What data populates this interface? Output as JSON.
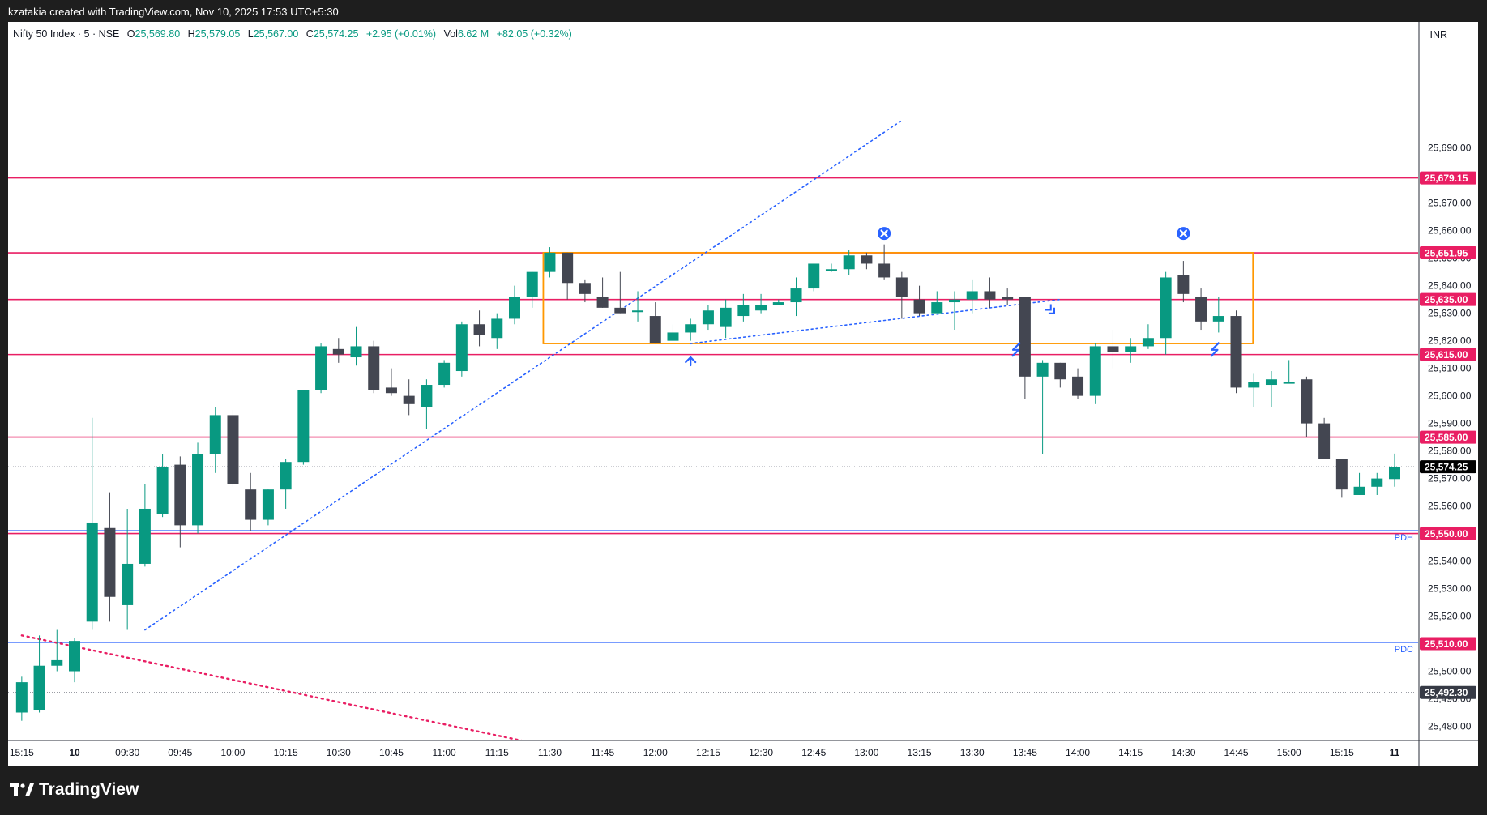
{
  "header": {
    "caption": "kzatakia created with TradingView.com, Nov 10, 2025 17:53 UTC+5:30"
  },
  "legend": {
    "symbol": "Nifty 50 Index · 5 · NSE",
    "o_label": "O",
    "o": "25,569.80",
    "h_label": "H",
    "h": "25,579.05",
    "l_label": "L",
    "l": "25,567.00",
    "c_label": "C",
    "c": "25,574.25",
    "change": "+2.95 (+0.01%)",
    "vol_label": "Vol",
    "vol": "6.62 M",
    "vol_change": "+82.05 (+0.32%)"
  },
  "currency": "INR",
  "footer": {
    "brand": "TradingView"
  },
  "colors": {
    "up": "#089981",
    "down": "#434651",
    "level": "#e91e63",
    "prev": "#2962ff",
    "box": "#ff9800",
    "trend": "#2962ff",
    "trend_down": "#e91e63"
  },
  "chart_data": {
    "type": "candlestick",
    "interval": "5",
    "ylim": [
      25475,
      25694
    ],
    "y_ticks": [
      25480,
      25490,
      25500,
      25510,
      25520,
      25530,
      25540,
      25550,
      25560,
      25570,
      25580,
      25590,
      25600,
      25610,
      25620,
      25630,
      25640,
      25650,
      25660,
      25670,
      25680,
      25690
    ],
    "x_tick_labels": [
      "15:15",
      "10",
      "09:30",
      "09:45",
      "10:00",
      "10:15",
      "10:30",
      "10:45",
      "11:00",
      "11:15",
      "11:30",
      "11:45",
      "12:00",
      "12:15",
      "12:30",
      "12:45",
      "13:00",
      "13:15",
      "13:30",
      "13:45",
      "14:00",
      "14:15",
      "14:30",
      "14:45",
      "15:00",
      "15:15",
      "11"
    ],
    "x_tick_bars": [
      -3,
      0,
      3,
      6,
      9,
      12,
      15,
      18,
      21,
      24,
      27,
      30,
      33,
      36,
      39,
      42,
      45,
      48,
      51,
      54,
      57,
      60,
      63,
      66,
      69,
      72,
      75
    ],
    "candles": [
      {
        "bar": -3,
        "o": 25485,
        "h": 25498,
        "l": 25482,
        "c": 25496
      },
      {
        "bar": -2,
        "o": 25486,
        "h": 25513,
        "l": 25485,
        "c": 25502
      },
      {
        "bar": -1,
        "o": 25502,
        "h": 25515,
        "l": 25500,
        "c": 25504
      },
      {
        "bar": 0,
        "o": 25500,
        "h": 25512,
        "l": 25496,
        "c": 25511
      },
      {
        "bar": 1,
        "o": 25518,
        "h": 25592,
        "l": 25515,
        "c": 25554
      },
      {
        "bar": 2,
        "o": 25552,
        "h": 25565,
        "l": 25518,
        "c": 25527
      },
      {
        "bar": 3,
        "o": 25524,
        "h": 25559,
        "l": 25515,
        "c": 25539
      },
      {
        "bar": 4,
        "o": 25539,
        "h": 25568,
        "l": 25538,
        "c": 25559
      },
      {
        "bar": 5,
        "o": 25557,
        "h": 25579,
        "l": 25556,
        "c": 25574
      },
      {
        "bar": 6,
        "o": 25575,
        "h": 25578,
        "l": 25545,
        "c": 25553
      },
      {
        "bar": 7,
        "o": 25553,
        "h": 25583,
        "l": 25550,
        "c": 25579
      },
      {
        "bar": 8,
        "o": 25579,
        "h": 25596,
        "l": 25572,
        "c": 25593
      },
      {
        "bar": 9,
        "o": 25593,
        "h": 25595,
        "l": 25567,
        "c": 25568
      },
      {
        "bar": 10,
        "o": 25566,
        "h": 25572,
        "l": 25551,
        "c": 25555
      },
      {
        "bar": 11,
        "o": 25555,
        "h": 25566,
        "l": 25553,
        "c": 25566
      },
      {
        "bar": 12,
        "o": 25566,
        "h": 25577,
        "l": 25559,
        "c": 25576
      },
      {
        "bar": 13,
        "o": 25576,
        "h": 25602,
        "l": 25575,
        "c": 25602
      },
      {
        "bar": 14,
        "o": 25602,
        "h": 25619,
        "l": 25601,
        "c": 25618
      },
      {
        "bar": 15,
        "o": 25617,
        "h": 25621,
        "l": 25612,
        "c": 25615
      },
      {
        "bar": 16,
        "o": 25614,
        "h": 25625,
        "l": 25611,
        "c": 25618
      },
      {
        "bar": 17,
        "o": 25618,
        "h": 25620,
        "l": 25601,
        "c": 25602
      },
      {
        "bar": 18,
        "o": 25603,
        "h": 25610,
        "l": 25600,
        "c": 25601
      },
      {
        "bar": 19,
        "o": 25600,
        "h": 25606,
        "l": 25593,
        "c": 25597
      },
      {
        "bar": 20,
        "o": 25596,
        "h": 25606,
        "l": 25588,
        "c": 25604
      },
      {
        "bar": 21,
        "o": 25604,
        "h": 25613,
        "l": 25603,
        "c": 25612
      },
      {
        "bar": 22,
        "o": 25609,
        "h": 25627,
        "l": 25607,
        "c": 25626
      },
      {
        "bar": 23,
        "o": 25626,
        "h": 25631,
        "l": 25618,
        "c": 25622
      },
      {
        "bar": 24,
        "o": 25621,
        "h": 25630,
        "l": 25617,
        "c": 25628
      },
      {
        "bar": 25,
        "o": 25628,
        "h": 25640,
        "l": 25626,
        "c": 25636
      },
      {
        "bar": 26,
        "o": 25636,
        "h": 25645,
        "l": 25632,
        "c": 25645
      },
      {
        "bar": 27,
        "o": 25645,
        "h": 25654,
        "l": 25643,
        "c": 25652
      },
      {
        "bar": 28,
        "o": 25652,
        "h": 25652,
        "l": 25635,
        "c": 25641
      },
      {
        "bar": 29,
        "o": 25641,
        "h": 25642,
        "l": 25634,
        "c": 25637
      },
      {
        "bar": 30,
        "o": 25636,
        "h": 25643,
        "l": 25632,
        "c": 25632
      },
      {
        "bar": 31,
        "o": 25632,
        "h": 25645,
        "l": 25630,
        "c": 25630
      },
      {
        "bar": 32,
        "o": 25631,
        "h": 25638,
        "l": 25627,
        "c": 25631
      },
      {
        "bar": 33,
        "o": 25629,
        "h": 25634,
        "l": 25619,
        "c": 25619
      },
      {
        "bar": 34,
        "o": 25620,
        "h": 25626,
        "l": 25620,
        "c": 25623
      },
      {
        "bar": 35,
        "o": 25623,
        "h": 25628,
        "l": 25620,
        "c": 25626
      },
      {
        "bar": 36,
        "o": 25626,
        "h": 25633,
        "l": 25624,
        "c": 25631
      },
      {
        "bar": 37,
        "o": 25625,
        "h": 25635,
        "l": 25621,
        "c": 25632
      },
      {
        "bar": 38,
        "o": 25629,
        "h": 25637,
        "l": 25627,
        "c": 25633
      },
      {
        "bar": 39,
        "o": 25631,
        "h": 25637,
        "l": 25630,
        "c": 25633
      },
      {
        "bar": 40,
        "o": 25633,
        "h": 25635,
        "l": 25633,
        "c": 25634
      },
      {
        "bar": 41,
        "o": 25634,
        "h": 25643,
        "l": 25629,
        "c": 25639
      },
      {
        "bar": 42,
        "o": 25639,
        "h": 25648,
        "l": 25638,
        "c": 25648
      },
      {
        "bar": 43,
        "o": 25646,
        "h": 25648,
        "l": 25645,
        "c": 25646
      },
      {
        "bar": 44,
        "o": 25646,
        "h": 25653,
        "l": 25644,
        "c": 25651
      },
      {
        "bar": 45,
        "o": 25651,
        "h": 25652,
        "l": 25646,
        "c": 25648
      },
      {
        "bar": 46,
        "o": 25648,
        "h": 25655,
        "l": 25642,
        "c": 25643
      },
      {
        "bar": 47,
        "o": 25643,
        "h": 25645,
        "l": 25628,
        "c": 25636
      },
      {
        "bar": 48,
        "o": 25635,
        "h": 25640,
        "l": 25629,
        "c": 25630
      },
      {
        "bar": 49,
        "o": 25630,
        "h": 25638,
        "l": 25630,
        "c": 25634
      },
      {
        "bar": 50,
        "o": 25634,
        "h": 25638,
        "l": 25624,
        "c": 25635
      },
      {
        "bar": 51,
        "o": 25635,
        "h": 25642,
        "l": 25630,
        "c": 25638
      },
      {
        "bar": 52,
        "o": 25638,
        "h": 25643,
        "l": 25632,
        "c": 25635
      },
      {
        "bar": 53,
        "o": 25636,
        "h": 25639,
        "l": 25633,
        "c": 25635
      },
      {
        "bar": 54,
        "o": 25636,
        "h": 25636,
        "l": 25599,
        "c": 25607
      },
      {
        "bar": 55,
        "o": 25607,
        "h": 25613,
        "l": 25579,
        "c": 25612
      },
      {
        "bar": 56,
        "o": 25612,
        "h": 25612,
        "l": 25603,
        "c": 25606
      },
      {
        "bar": 57,
        "o": 25607,
        "h": 25610,
        "l": 25599,
        "c": 25600
      },
      {
        "bar": 58,
        "o": 25600,
        "h": 25619,
        "l": 25597,
        "c": 25618
      },
      {
        "bar": 59,
        "o": 25618,
        "h": 25624,
        "l": 25610,
        "c": 25616
      },
      {
        "bar": 60,
        "o": 25616,
        "h": 25621,
        "l": 25612,
        "c": 25618
      },
      {
        "bar": 61,
        "o": 25618,
        "h": 25626,
        "l": 25617,
        "c": 25621
      },
      {
        "bar": 62,
        "o": 25621,
        "h": 25645,
        "l": 25615,
        "c": 25643
      },
      {
        "bar": 63,
        "o": 25644,
        "h": 25649,
        "l": 25634,
        "c": 25637
      },
      {
        "bar": 64,
        "o": 25636,
        "h": 25639,
        "l": 25624,
        "c": 25627
      },
      {
        "bar": 65,
        "o": 25627,
        "h": 25636,
        "l": 25623,
        "c": 25629
      },
      {
        "bar": 66,
        "o": 25629,
        "h": 25631,
        "l": 25601,
        "c": 25603
      },
      {
        "bar": 67,
        "o": 25603,
        "h": 25608,
        "l": 25596,
        "c": 25605
      },
      {
        "bar": 68,
        "o": 25604,
        "h": 25609,
        "l": 25596,
        "c": 25606
      },
      {
        "bar": 69,
        "o": 25605,
        "h": 25613,
        "l": 25605,
        "c": 25605
      },
      {
        "bar": 70,
        "o": 25606,
        "h": 25607,
        "l": 25585,
        "c": 25590
      },
      {
        "bar": 71,
        "o": 25590,
        "h": 25592,
        "l": 25577,
        "c": 25577
      },
      {
        "bar": 72,
        "o": 25577,
        "h": 25577,
        "l": 25563,
        "c": 25566
      },
      {
        "bar": 73,
        "o": 25564,
        "h": 25572,
        "l": 25564,
        "c": 25567
      },
      {
        "bar": 74,
        "o": 25567,
        "h": 25572,
        "l": 25564,
        "c": 25570
      },
      {
        "bar": 75,
        "o": 25569.8,
        "h": 25579.05,
        "l": 25567,
        "c": 25574.25
      }
    ],
    "levels": [
      {
        "price": 25679.15,
        "label": "25,679.15",
        "kind": "level"
      },
      {
        "price": 25651.95,
        "label": "25,651.95",
        "kind": "level"
      },
      {
        "price": 25635.0,
        "label": "25,635.00",
        "kind": "level"
      },
      {
        "price": 25615.0,
        "label": "25,615.00",
        "kind": "level"
      },
      {
        "price": 25585.0,
        "label": "25,585.00",
        "kind": "level"
      },
      {
        "price": 25550.0,
        "label": "25,550.00",
        "kind": "level"
      }
    ],
    "prev_levels": [
      {
        "price": 25551,
        "tag": "PDH"
      },
      {
        "price": 25510.5,
        "tag": "PDC"
      }
    ],
    "side_tags": [
      {
        "price": 25510.0,
        "label": "25,510.00",
        "kind": "level"
      },
      {
        "price": 25574.25,
        "label": "25,574.25",
        "kind": "current"
      },
      {
        "price": 25492.3,
        "label": "25,492.30",
        "kind": "dark"
      }
    ],
    "dotted_levels": [
      25574.25,
      25492.3
    ],
    "range_box": {
      "bar_from": 27,
      "bar_to": 67,
      "price_top": 25652,
      "price_bottom": 25619
    },
    "trendlines": [
      {
        "from": [
          4,
          25515
        ],
        "to": [
          47,
          25700
        ],
        "color": "trend"
      },
      {
        "from": [
          -3,
          25513
        ],
        "to": [
          26,
          25474
        ],
        "color": "trend_down"
      },
      {
        "from": [
          35,
          25619
        ],
        "to": [
          56,
          25635
        ],
        "color": "trend"
      }
    ],
    "markers": [
      {
        "bar": 46,
        "price": 25659,
        "type": "x-circle"
      },
      {
        "bar": 63,
        "price": 25659,
        "type": "x-circle"
      },
      {
        "bar": 35,
        "price": 25614,
        "type": "up-arrow"
      },
      {
        "bar": 53.5,
        "price": 25617,
        "type": "bolt"
      },
      {
        "bar": 64.8,
        "price": 25617,
        "type": "bolt"
      },
      {
        "bar": 55.5,
        "price": 25631,
        "type": "double-chevron"
      }
    ]
  }
}
